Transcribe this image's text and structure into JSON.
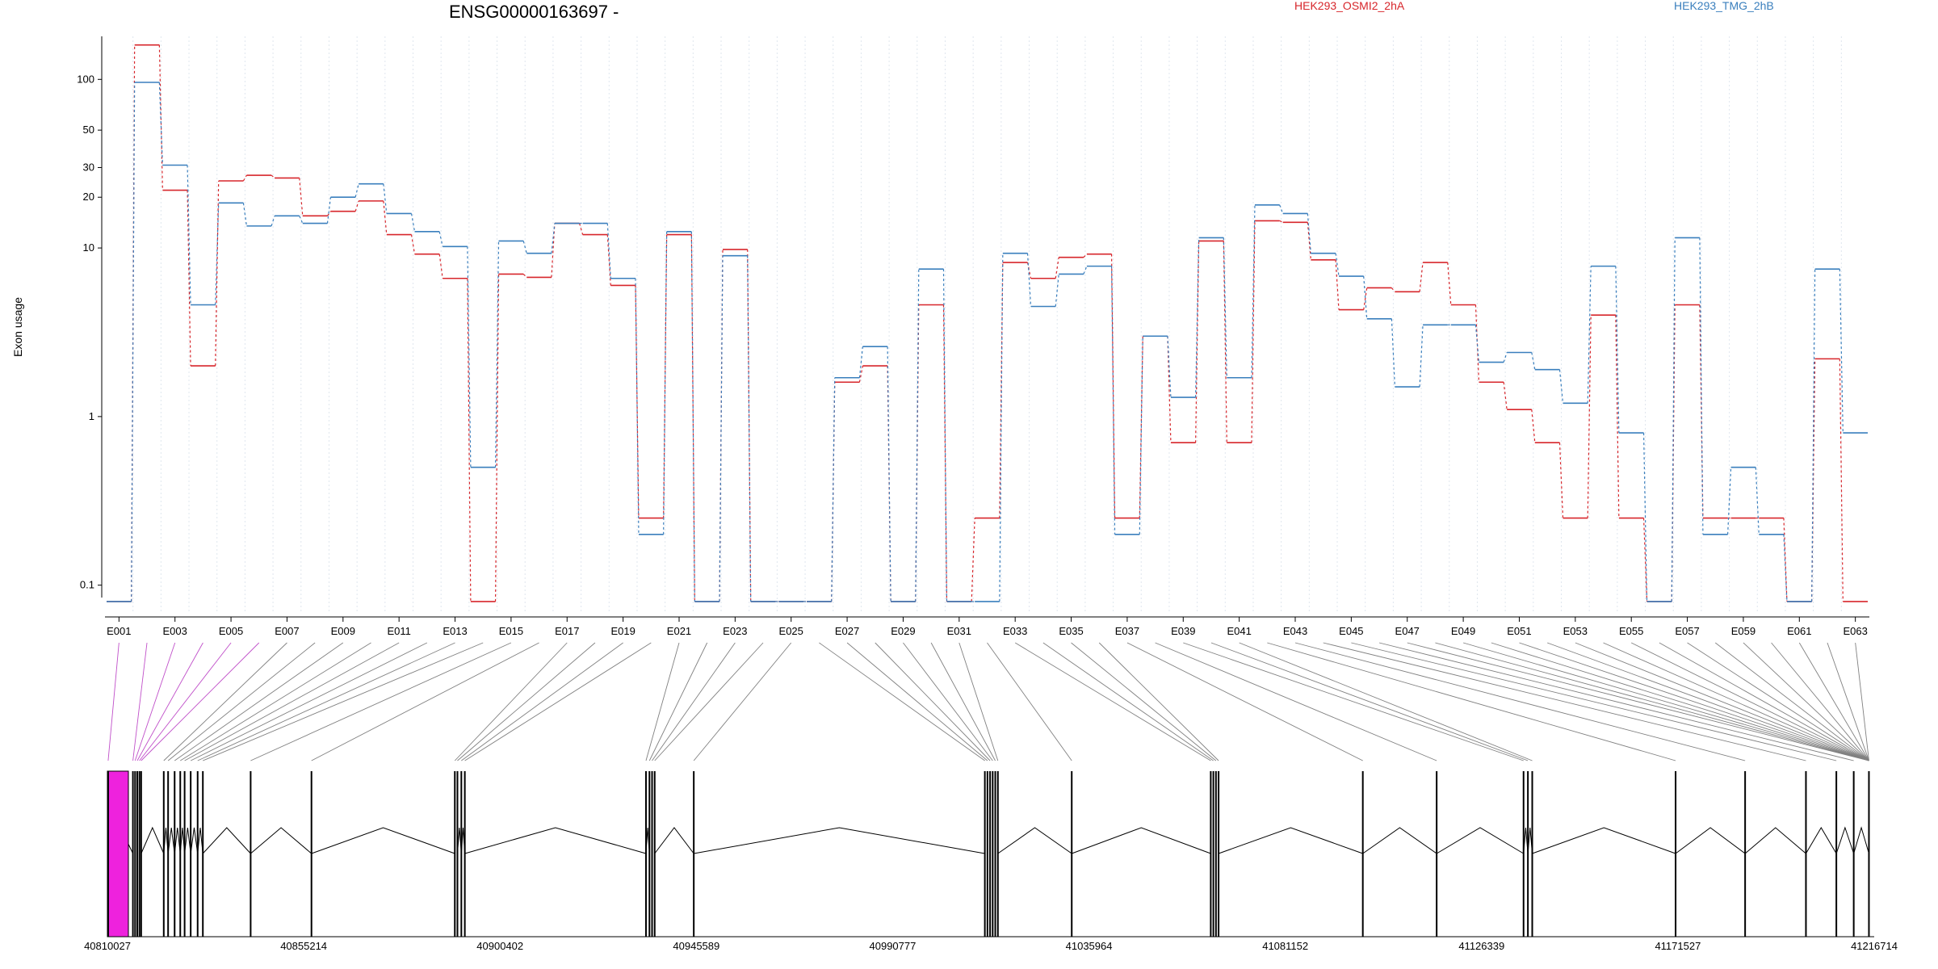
{
  "title": "ENSG00000163697 -",
  "legend": [
    {
      "name": "HEK293_OSMI2_2hA",
      "color": "#d7262b"
    },
    {
      "name": "HEK293_TMG_2hB",
      "color": "#3a7fbd"
    }
  ],
  "colors": {
    "highlight": "#ee22dd",
    "connector_highlight": "#c04fc9",
    "connector": "#808080"
  },
  "chart_data": {
    "type": "line",
    "ylabel": "Exon usage",
    "yscale": "log",
    "yticks": [
      0.1,
      1,
      10,
      20,
      30,
      50,
      100
    ],
    "ylim": [
      0.07,
      180
    ],
    "categories": [
      "E001",
      "E002",
      "E003",
      "E004",
      "E005",
      "E006",
      "E007",
      "E008",
      "E009",
      "E010",
      "E011",
      "E012",
      "E013",
      "E014",
      "E015",
      "E016",
      "E017",
      "E018",
      "E019",
      "E020",
      "E021",
      "E022",
      "E023",
      "E024",
      "E025",
      "E026",
      "E027",
      "E028",
      "E029",
      "E030",
      "E031",
      "E032",
      "E033",
      "E034",
      "E035",
      "E036",
      "E037",
      "E038",
      "E039",
      "E040",
      "E041",
      "E042",
      "E043",
      "E044",
      "E045",
      "E046",
      "E047",
      "E048",
      "E049",
      "E050",
      "E051",
      "E052",
      "E053",
      "E054",
      "E055",
      "E056",
      "E057",
      "E058",
      "E059",
      "E060",
      "E061",
      "E062",
      "E063"
    ],
    "xtick_labels": [
      "E001",
      "E003",
      "E005",
      "E007",
      "E009",
      "E011",
      "E013",
      "E015",
      "E017",
      "E019",
      "E021",
      "E023",
      "E025",
      "E027",
      "E029",
      "E031",
      "E033",
      "E035",
      "E037",
      "E039",
      "E041",
      "E043",
      "E045",
      "E047",
      "E049",
      "E051",
      "E053",
      "E055",
      "E057",
      "E059",
      "E061",
      "E063"
    ],
    "series": [
      {
        "name": "HEK293_OSMI2_2hA",
        "values": [
          0.08,
          160,
          22,
          2.0,
          25,
          27,
          26,
          15.5,
          16.5,
          19,
          12,
          9.2,
          6.6,
          0.08,
          7,
          6.7,
          14,
          12,
          6,
          0.25,
          12,
          0.08,
          9.8,
          0.08,
          0.08,
          0.08,
          1.6,
          2,
          0.08,
          4.6,
          0.08,
          0.25,
          8.2,
          6.6,
          8.8,
          9.2,
          0.25,
          3,
          0.7,
          11,
          0.7,
          14.5,
          14.2,
          8.5,
          4.3,
          5.8,
          5.5,
          8.2,
          4.6,
          1.6,
          1.1,
          0.7,
          0.25,
          4,
          0.25,
          0.08,
          4.6,
          0.25,
          0.25,
          0.25,
          0.08,
          2.2,
          0.08
        ]
      },
      {
        "name": "HEK293_TMG_2hB",
        "values": [
          0.08,
          96,
          31,
          4.6,
          18.5,
          13.5,
          15.5,
          14,
          20,
          24,
          16,
          12.5,
          10.2,
          0.5,
          11,
          9.3,
          14,
          14,
          6.6,
          0.2,
          12.5,
          0.08,
          9,
          0.08,
          0.08,
          0.08,
          1.7,
          2.6,
          0.08,
          7.5,
          0.08,
          0.08,
          9.3,
          4.5,
          7,
          7.8,
          0.2,
          3,
          1.3,
          11.5,
          1.7,
          18,
          16,
          9.3,
          6.8,
          3.8,
          1.5,
          3.5,
          3.5,
          2.1,
          2.4,
          1.9,
          1.2,
          7.8,
          0.8,
          0.08,
          11.5,
          0.2,
          0.5,
          0.2,
          0.08,
          7.5,
          0.8
        ]
      }
    ],
    "genomic_axis": {
      "tick_labels": [
        "40810027",
        "40855214",
        "40900402",
        "40945589",
        "40990777",
        "41035964",
        "41081152",
        "41126339",
        "41171527",
        "41216714"
      ],
      "highlighted_exons": [
        "E001",
        "E002",
        "E003",
        "E004",
        "E005",
        "E006"
      ]
    }
  }
}
